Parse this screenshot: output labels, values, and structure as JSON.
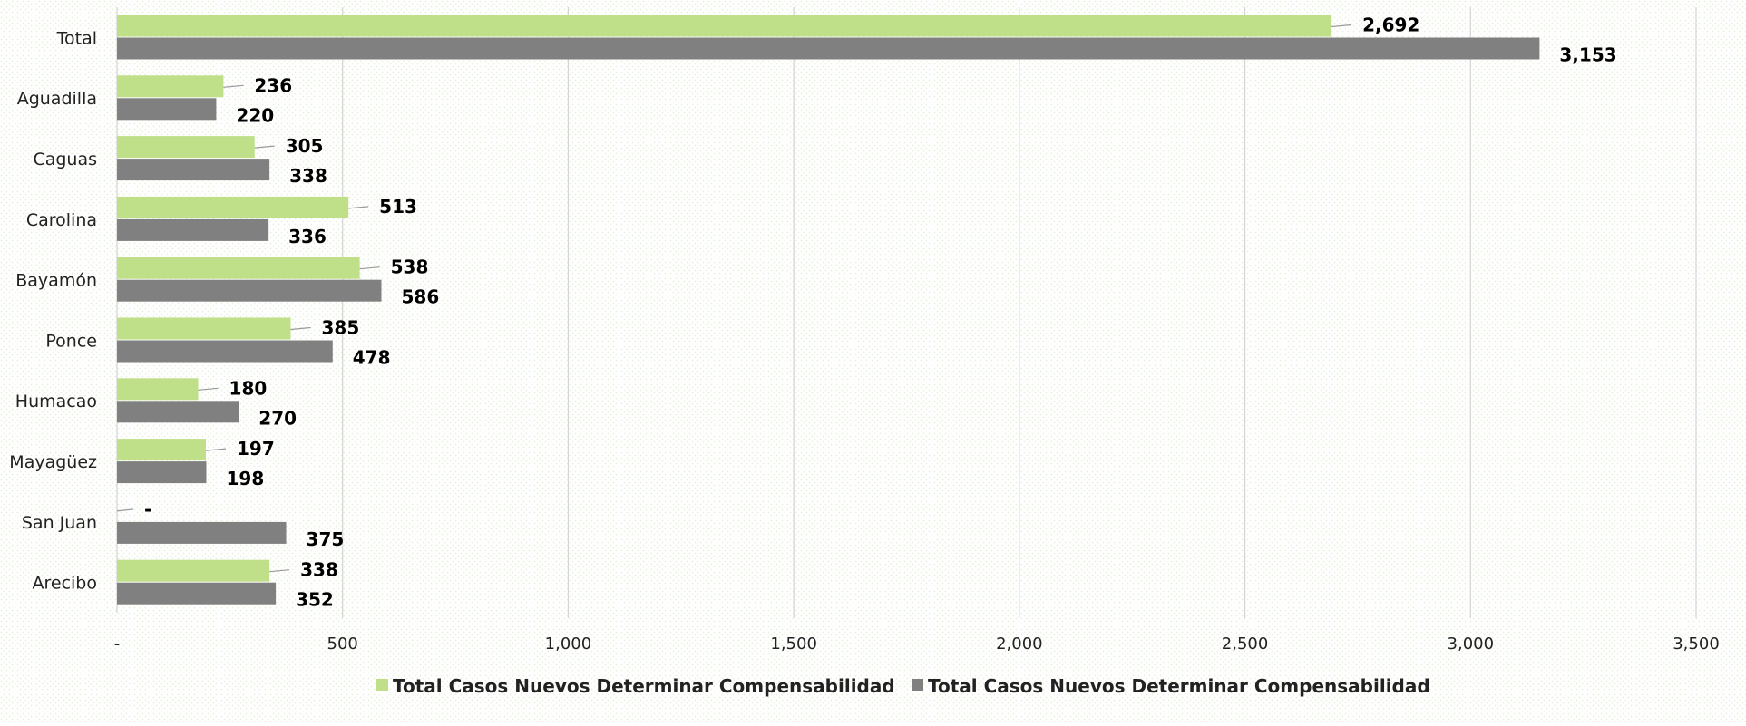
{
  "chart_data": {
    "type": "bar",
    "orientation": "horizontal",
    "categories": [
      "Total",
      "Aguadilla",
      "Caguas",
      "Carolina",
      "Bayamón",
      "Ponce",
      "Humacao",
      "Mayagüez",
      "San Juan",
      "Arecibo"
    ],
    "series": [
      {
        "name": "Total Casos Nuevos Determinar Compensabilidad",
        "color": "#bfdf88",
        "values": [
          2692,
          236,
          305,
          513,
          538,
          385,
          180,
          197,
          0,
          338
        ],
        "labels": [
          "2,692",
          "236",
          "305",
          "513",
          "538",
          "385",
          "180",
          "197",
          "-",
          "338"
        ]
      },
      {
        "name": "Total Casos Nuevos Determinar Compensabilidad",
        "color": "#808080",
        "values": [
          3153,
          220,
          338,
          336,
          586,
          478,
          270,
          198,
          375,
          352
        ],
        "labels": [
          "3,153",
          "220",
          "338",
          "336",
          "586",
          "478",
          "270",
          "198",
          "375",
          "352"
        ]
      }
    ],
    "xlim": [
      0,
      3500
    ],
    "x_ticks": [
      0,
      500,
      1000,
      1500,
      2000,
      2500,
      3000,
      3500
    ],
    "x_tick_labels": [
      "-",
      "500",
      "1,000",
      "1,500",
      "2,000",
      "2,500",
      "3,000",
      "3,500"
    ],
    "gridlines": true,
    "legend_position": "bottom",
    "title": "",
    "xlabel": "",
    "ylabel": ""
  }
}
